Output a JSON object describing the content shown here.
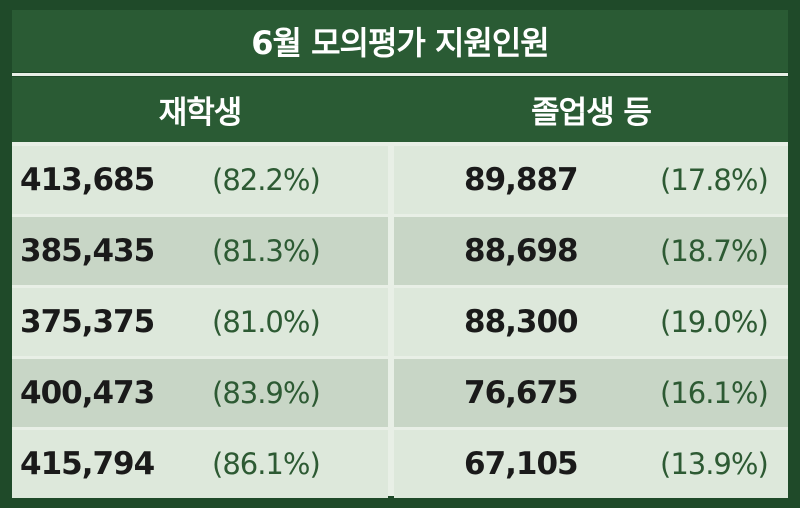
{
  "chart_data": {
    "type": "table",
    "title": "6월 모의평가 지원인원",
    "columns": [
      "재학생",
      "졸업생 등"
    ],
    "rows": [
      {
        "students": "413,685",
        "students_pct": "(82.2%)",
        "graduates": "89,887",
        "graduates_pct": "(17.8%)"
      },
      {
        "students": "385,435",
        "students_pct": "(81.3%)",
        "graduates": "88,698",
        "graduates_pct": "(18.7%)"
      },
      {
        "students": "375,375",
        "students_pct": "(81.0%)",
        "graduates": "88,300",
        "graduates_pct": "(19.0%)"
      },
      {
        "students": "400,473",
        "students_pct": "(83.9%)",
        "graduates": "76,675",
        "graduates_pct": "(16.1%)"
      },
      {
        "students": "415,794",
        "students_pct": "(86.1%)",
        "graduates": "67,105",
        "graduates_pct": "(13.9%)"
      }
    ]
  },
  "colors": {
    "frame": "#1f4a29",
    "header_bg": "#2a5b34",
    "row_light": "#dde8db",
    "row_dark": "#c8d6c6",
    "number_text": "#1a1a1a",
    "percent_text": "#2d5a33"
  }
}
